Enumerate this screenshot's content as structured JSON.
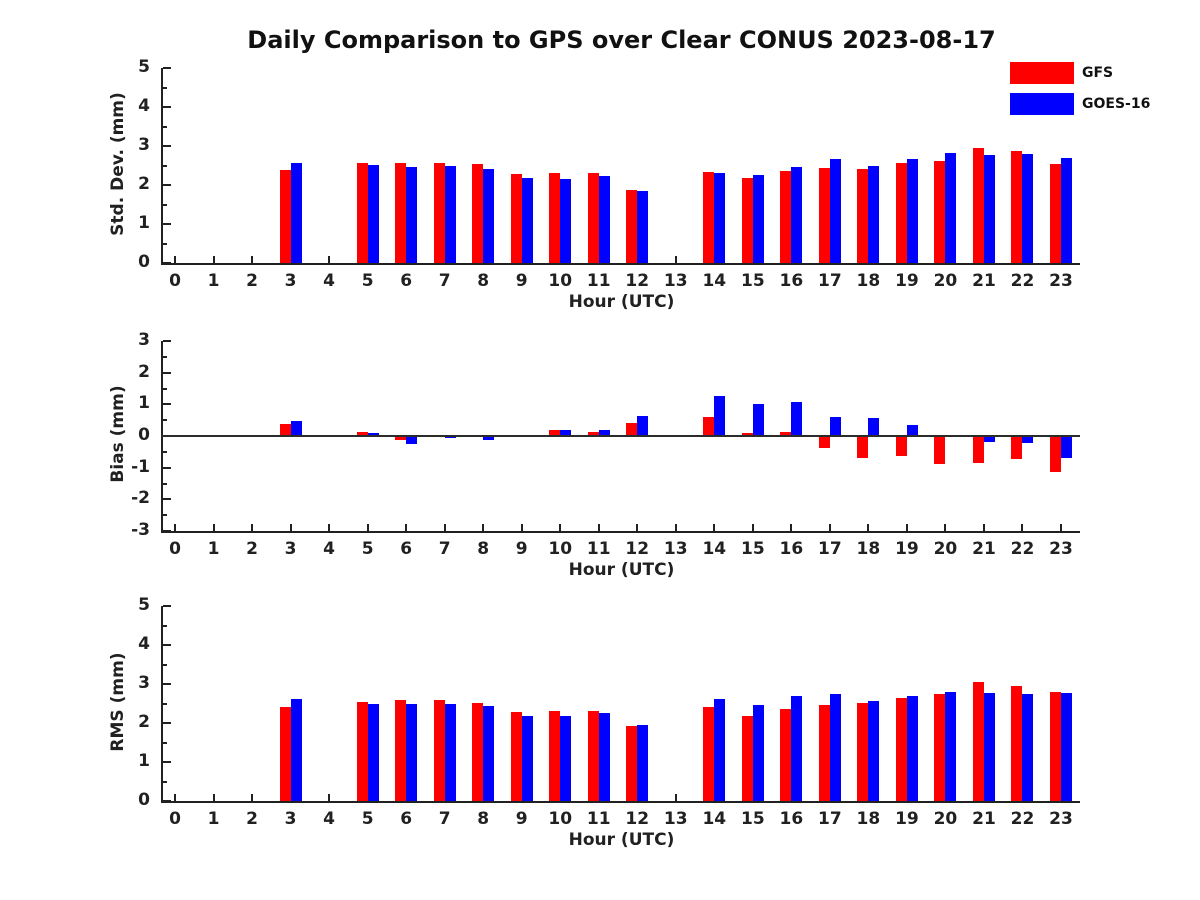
{
  "figure_title": "Daily Comparison to GPS over Clear CONUS 2023-08-17",
  "legend": {
    "position": "top-right",
    "items": [
      {
        "label": "GFS",
        "color": "#ff0000"
      },
      {
        "label": "GOES-16",
        "color": "#0000ff"
      }
    ]
  },
  "colors": {
    "gfs": "#ff0000",
    "goes16": "#0000ff",
    "axis": "#212121",
    "background": "#ffffff"
  },
  "chart_data": [
    {
      "type": "bar",
      "name": "std-dev",
      "ylabel": "Std. Dev. (mm)",
      "xlabel": "Hour (UTC)",
      "ylim": [
        0,
        5
      ],
      "yticks": [
        0,
        1,
        2,
        3,
        4,
        5
      ],
      "zero_line": false,
      "grid": false,
      "categories": [
        0,
        1,
        2,
        3,
        4,
        5,
        6,
        7,
        8,
        9,
        10,
        11,
        12,
        13,
        14,
        15,
        16,
        17,
        18,
        19,
        20,
        21,
        22,
        23
      ],
      "series": [
        {
          "name": "GFS",
          "color": "#ff0000",
          "values": [
            null,
            null,
            null,
            2.38,
            null,
            2.57,
            2.56,
            2.57,
            2.54,
            2.28,
            2.32,
            2.31,
            1.88,
            null,
            2.33,
            2.19,
            2.36,
            2.43,
            2.42,
            2.57,
            2.61,
            2.94,
            2.87,
            2.53
          ]
        },
        {
          "name": "GOES-16",
          "color": "#0000ff",
          "values": [
            null,
            null,
            null,
            2.57,
            null,
            2.51,
            2.47,
            2.5,
            2.42,
            2.18,
            2.16,
            2.24,
            1.85,
            null,
            2.31,
            2.26,
            2.46,
            2.66,
            2.49,
            2.66,
            2.81,
            2.76,
            2.79,
            2.68
          ]
        }
      ]
    },
    {
      "type": "bar",
      "name": "bias",
      "ylabel": "Bias (mm)",
      "xlabel": "Hour (UTC)",
      "ylim": [
        -3,
        3
      ],
      "yticks": [
        -3,
        -2,
        -1,
        0,
        1,
        2,
        3
      ],
      "zero_line": true,
      "grid": false,
      "categories": [
        0,
        1,
        2,
        3,
        4,
        5,
        6,
        7,
        8,
        9,
        10,
        11,
        12,
        13,
        14,
        15,
        16,
        17,
        18,
        19,
        20,
        21,
        22,
        23
      ],
      "series": [
        {
          "name": "GFS",
          "color": "#ff0000",
          "values": [
            null,
            null,
            null,
            0.38,
            null,
            0.12,
            -0.13,
            0.03,
            0.01,
            -0.03,
            0.19,
            0.13,
            0.41,
            null,
            0.61,
            0.08,
            0.12,
            -0.37,
            -0.69,
            -0.63,
            -0.89,
            -0.84,
            -0.73,
            -1.13
          ]
        },
        {
          "name": "GOES-16",
          "color": "#0000ff",
          "values": [
            null,
            null,
            null,
            0.47,
            null,
            0.09,
            -0.25,
            -0.05,
            -0.12,
            -0.01,
            0.2,
            0.18,
            0.64,
            null,
            1.25,
            1.0,
            1.06,
            0.6,
            0.57,
            0.35,
            0.0,
            -0.18,
            -0.23,
            -0.68
          ]
        }
      ]
    },
    {
      "type": "bar",
      "name": "rms",
      "ylabel": "RMS (mm)",
      "xlabel": "Hour (UTC)",
      "ylim": [
        0,
        5
      ],
      "yticks": [
        0,
        1,
        2,
        3,
        4,
        5
      ],
      "zero_line": false,
      "grid": false,
      "categories": [
        0,
        1,
        2,
        3,
        4,
        5,
        6,
        7,
        8,
        9,
        10,
        11,
        12,
        13,
        14,
        15,
        16,
        17,
        18,
        19,
        20,
        21,
        22,
        23
      ],
      "series": [
        {
          "name": "GFS",
          "color": "#ff0000",
          "values": [
            null,
            null,
            null,
            2.42,
            null,
            2.55,
            2.58,
            2.58,
            2.52,
            2.27,
            2.32,
            2.32,
            1.93,
            null,
            2.41,
            2.18,
            2.37,
            2.46,
            2.52,
            2.64,
            2.74,
            3.04,
            2.94,
            2.79
          ]
        },
        {
          "name": "GOES-16",
          "color": "#0000ff",
          "values": [
            null,
            null,
            null,
            2.61,
            null,
            2.5,
            2.48,
            2.48,
            2.43,
            2.17,
            2.17,
            2.25,
            1.96,
            null,
            2.62,
            2.47,
            2.7,
            2.75,
            2.57,
            2.68,
            2.79,
            2.76,
            2.75,
            2.77
          ]
        }
      ]
    }
  ]
}
